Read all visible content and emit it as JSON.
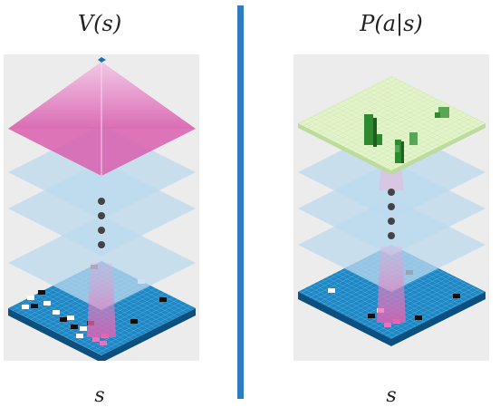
{
  "left": {
    "title": "V(s)",
    "label": "s"
  },
  "right": {
    "title": "P(a|s)",
    "label": "s"
  },
  "colors": {
    "divider": "#2f7cc0",
    "board": "#1e88c6",
    "hidden_layer": "#bcd9ee",
    "value_pink": "#e27fbf",
    "policy_green": "#e3f3c9",
    "policy_bar": "#2e8a2e"
  }
}
